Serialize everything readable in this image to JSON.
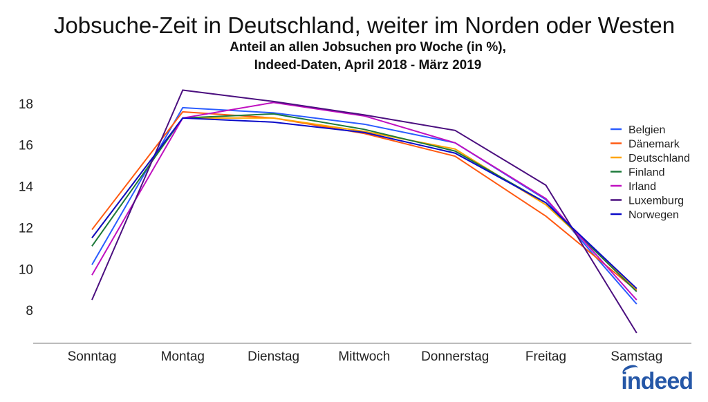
{
  "chart_data": {
    "type": "line",
    "title": "Jobsuche-Zeit in Deutschland, weiter im Norden oder Westen",
    "subtitle": [
      "Anteil an allen Jobsuchen pro Woche (in %),",
      "Indeed-Daten, April 2018 - März 2019"
    ],
    "xlabel": "",
    "ylabel": "",
    "categories": [
      "Sonntag",
      "Montag",
      "Dienstag",
      "Mittwoch",
      "Donnerstag",
      "Freitag",
      "Samstag"
    ],
    "yticks": [
      8,
      10,
      12,
      14,
      16,
      18
    ],
    "ylim": [
      6.4,
      19.3
    ],
    "grid": false,
    "legend_position": "right",
    "series": [
      {
        "name": "Belgien",
        "color": "#2a5cff",
        "values": [
          10.2,
          17.8,
          17.55,
          17.0,
          16.1,
          13.35,
          8.3
        ]
      },
      {
        "name": "Dänemark",
        "color": "#ff5a12",
        "values": [
          11.9,
          17.6,
          17.3,
          16.55,
          15.45,
          12.55,
          8.95
        ]
      },
      {
        "name": "Deutschland",
        "color": "#ffa500",
        "values": [
          11.5,
          17.3,
          17.3,
          16.65,
          15.8,
          13.1,
          9.0
        ]
      },
      {
        "name": "Finland",
        "color": "#1e7a3a",
        "values": [
          11.1,
          17.3,
          17.5,
          16.75,
          15.7,
          13.2,
          8.9
        ]
      },
      {
        "name": "Irland",
        "color": "#c010c0",
        "values": [
          9.7,
          17.3,
          18.05,
          17.4,
          16.1,
          13.4,
          8.5
        ]
      },
      {
        "name": "Luxemburg",
        "color": "#4b0f7f",
        "values": [
          8.5,
          18.65,
          18.1,
          17.45,
          16.7,
          14.05,
          6.9
        ]
      },
      {
        "name": "Norwegen",
        "color": "#0a0ac8",
        "values": [
          11.5,
          17.3,
          17.1,
          16.6,
          15.6,
          13.2,
          9.05
        ]
      }
    ]
  },
  "logo": "indeed"
}
